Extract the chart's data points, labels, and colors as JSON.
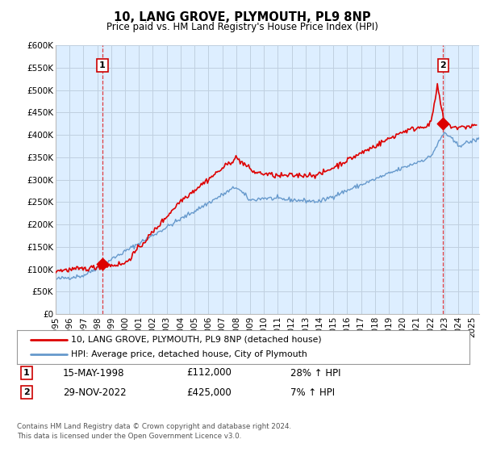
{
  "title": "10, LANG GROVE, PLYMOUTH, PL9 8NP",
  "subtitle": "Price paid vs. HM Land Registry's House Price Index (HPI)",
  "xlim": [
    1995.0,
    2025.5
  ],
  "ylim": [
    0,
    600000
  ],
  "yticks": [
    0,
    50000,
    100000,
    150000,
    200000,
    250000,
    300000,
    350000,
    400000,
    450000,
    500000,
    550000,
    600000
  ],
  "ytick_labels": [
    "£0",
    "£50K",
    "£100K",
    "£150K",
    "£200K",
    "£250K",
    "£300K",
    "£350K",
    "£400K",
    "£450K",
    "£500K",
    "£550K",
    "£600K"
  ],
  "xticks": [
    1995,
    1996,
    1997,
    1998,
    1999,
    2000,
    2001,
    2002,
    2003,
    2004,
    2005,
    2006,
    2007,
    2008,
    2009,
    2010,
    2011,
    2012,
    2013,
    2014,
    2015,
    2016,
    2017,
    2018,
    2019,
    2020,
    2021,
    2022,
    2023,
    2024,
    2025
  ],
  "hpi_color": "#6699cc",
  "price_color": "#dd0000",
  "chart_bg": "#ddeeff",
  "sale1_x": 1998.37,
  "sale1_y": 112000,
  "sale1_label": "1",
  "sale1_date": "15-MAY-1998",
  "sale1_price": "£112,000",
  "sale1_hpi": "28% ↑ HPI",
  "sale2_x": 2022.91,
  "sale2_y": 425000,
  "sale2_label": "2",
  "sale2_date": "29-NOV-2022",
  "sale2_price": "£425,000",
  "sale2_hpi": "7% ↑ HPI",
  "legend_line1": "10, LANG GROVE, PLYMOUTH, PL9 8NP (detached house)",
  "legend_line2": "HPI: Average price, detached house, City of Plymouth",
  "footnote": "Contains HM Land Registry data © Crown copyright and database right 2024.\nThis data is licensed under the Open Government Licence v3.0.",
  "background_color": "#ffffff",
  "grid_color": "#c0d0e0"
}
